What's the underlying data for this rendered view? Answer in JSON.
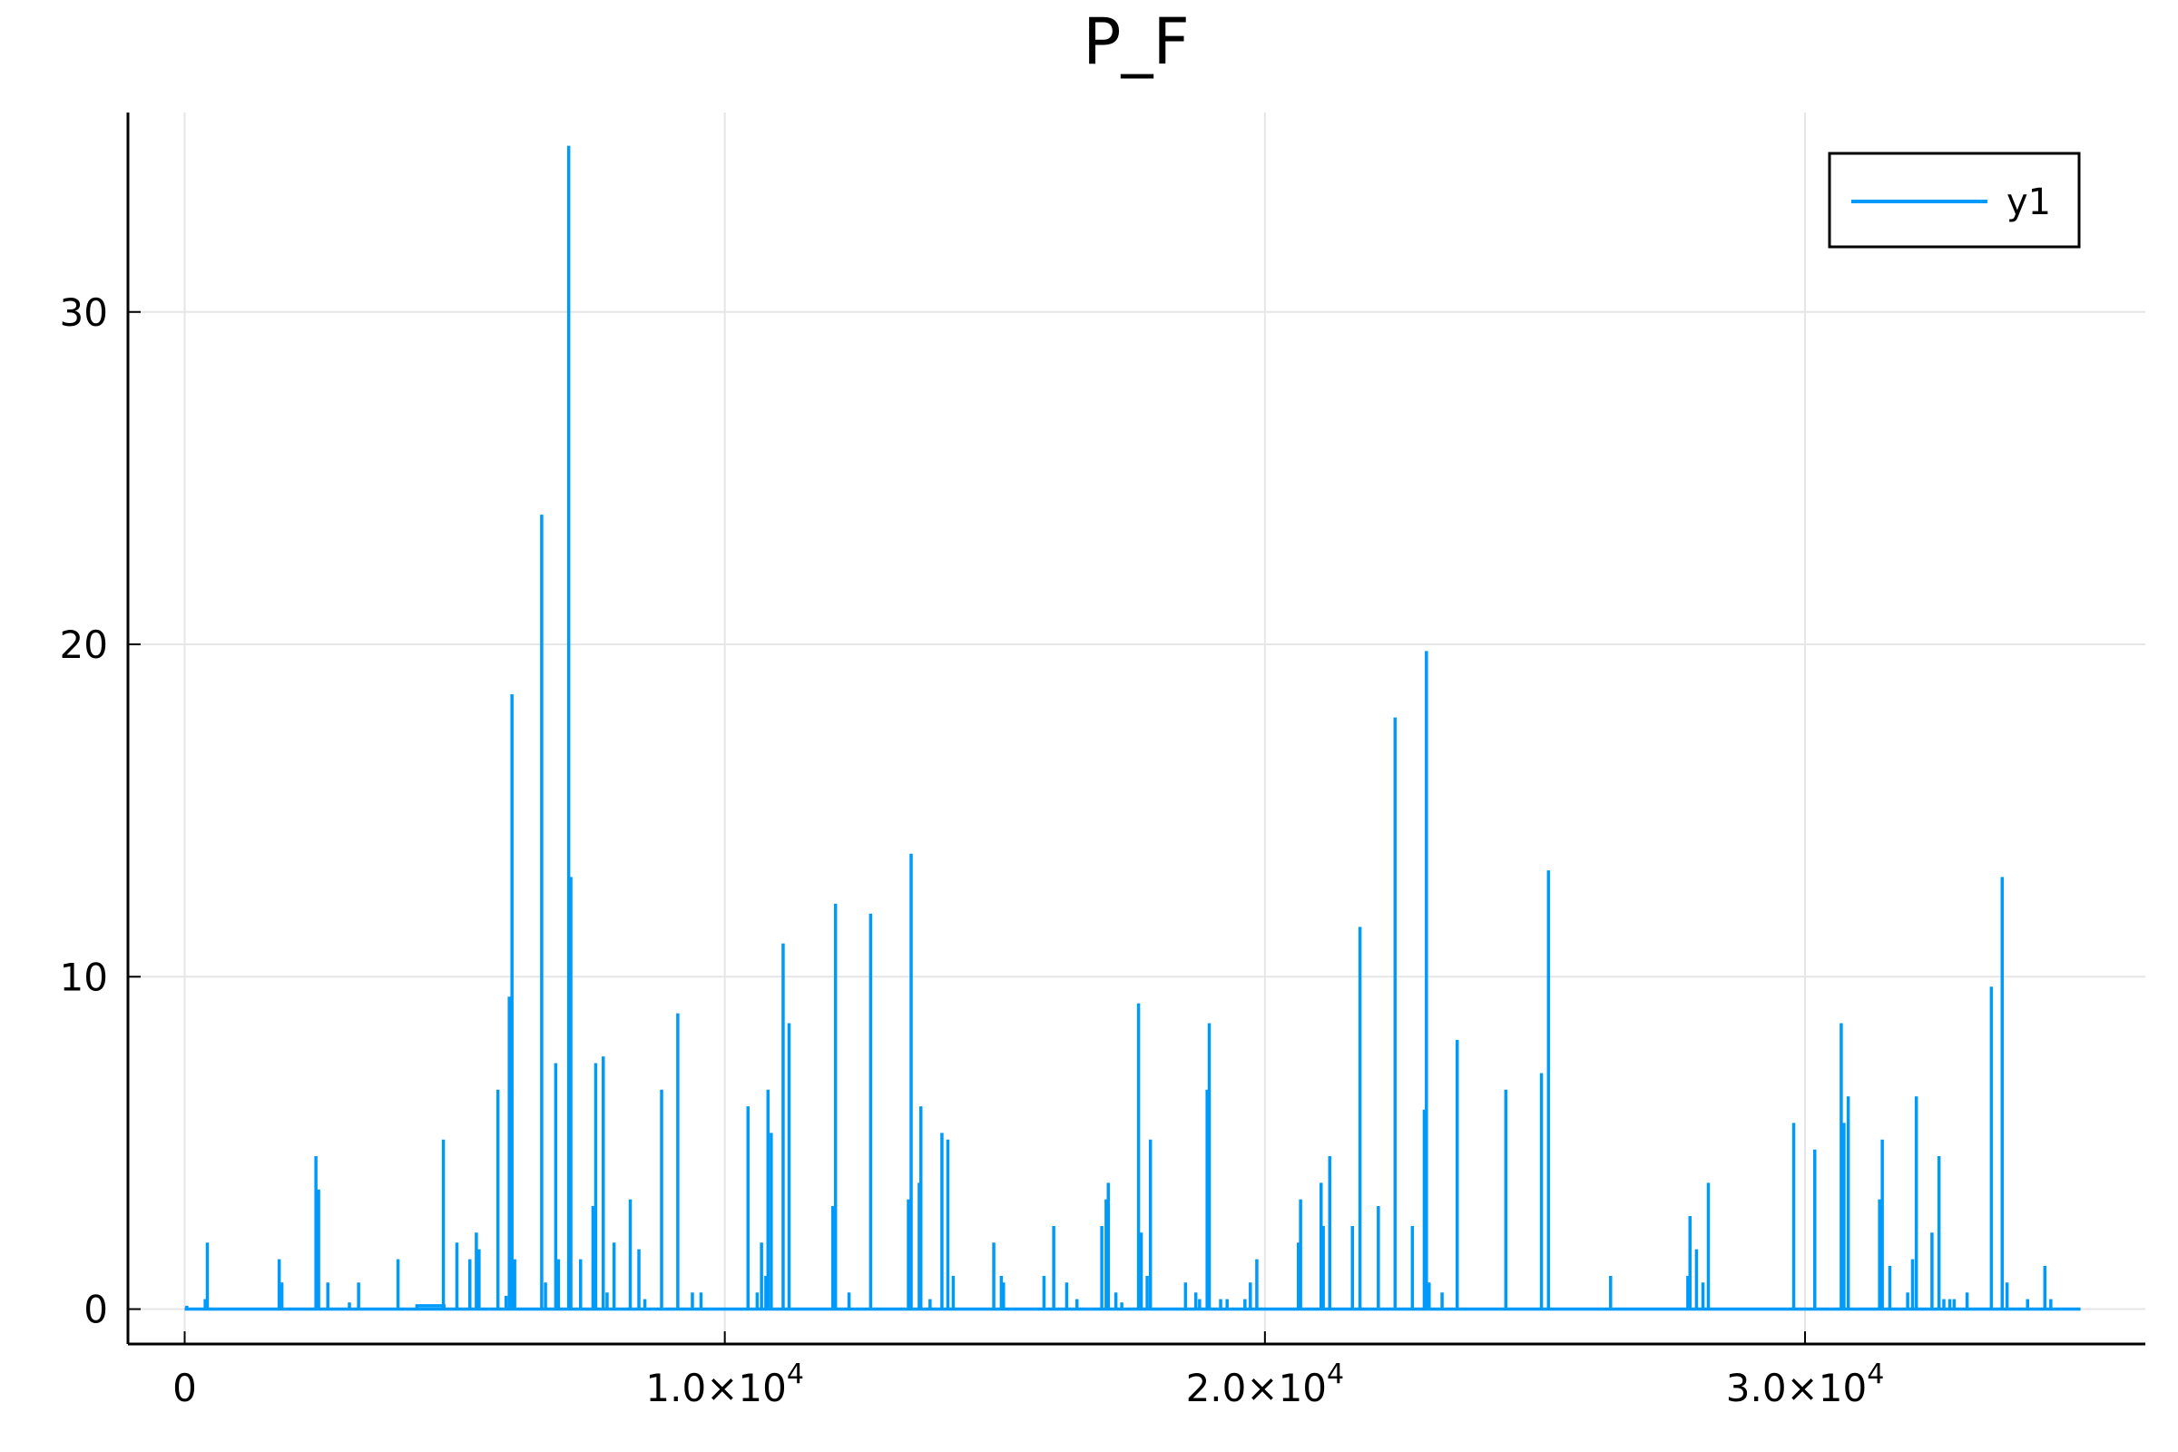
{
  "chart_data": {
    "type": "line",
    "title": "P_F",
    "xlabel": "",
    "ylabel": "",
    "xlim": [
      -1050,
      36300
    ],
    "ylim": [
      -1.05,
      36.0
    ],
    "grid": true,
    "legend_position": "top-right",
    "x_ticks": [
      {
        "value": 0,
        "mantissa": "0",
        "exponent": ""
      },
      {
        "value": 10000,
        "mantissa": "1.0×10",
        "exponent": "4"
      },
      {
        "value": 20000,
        "mantissa": "2.0×10",
        "exponent": "4"
      },
      {
        "value": 30000,
        "mantissa": "3.0×10",
        "exponent": "4"
      }
    ],
    "y_ticks": [
      {
        "value": 0,
        "label": "0"
      },
      {
        "value": 10,
        "label": "10"
      },
      {
        "value": 20,
        "label": "20"
      },
      {
        "value": 30,
        "label": "30"
      }
    ],
    "series": [
      {
        "name": "y1",
        "color": "#009AFA",
        "baseline": 0,
        "x_end": 35100,
        "plateau": {
          "x_start": 4300,
          "x_end": 4800,
          "value": 0.1
        },
        "spikes": [
          [
            40,
            0.1
          ],
          [
            380,
            0.3
          ],
          [
            420,
            2.0
          ],
          [
            1750,
            1.5
          ],
          [
            1800,
            0.8
          ],
          [
            2430,
            4.6
          ],
          [
            2480,
            3.6
          ],
          [
            2650,
            0.8
          ],
          [
            3050,
            0.2
          ],
          [
            3220,
            0.8
          ],
          [
            3950,
            1.5
          ],
          [
            4790,
            5.1
          ],
          [
            5040,
            2.0
          ],
          [
            5280,
            1.5
          ],
          [
            5400,
            2.3
          ],
          [
            5450,
            1.8
          ],
          [
            5800,
            6.6
          ],
          [
            5950,
            0.4
          ],
          [
            6010,
            9.4
          ],
          [
            6060,
            18.5
          ],
          [
            6110,
            1.5
          ],
          [
            6610,
            23.9
          ],
          [
            6680,
            0.8
          ],
          [
            6870,
            7.4
          ],
          [
            6920,
            1.5
          ],
          [
            7110,
            35.0
          ],
          [
            7150,
            13.0
          ],
          [
            7330,
            1.5
          ],
          [
            7560,
            3.1
          ],
          [
            7610,
            7.4
          ],
          [
            7750,
            7.6
          ],
          [
            7820,
            0.5
          ],
          [
            7950,
            2.0
          ],
          [
            8250,
            3.3
          ],
          [
            8410,
            1.8
          ],
          [
            8520,
            0.3
          ],
          [
            8830,
            6.6
          ],
          [
            9130,
            8.9
          ],
          [
            9400,
            0.5
          ],
          [
            9560,
            0.5
          ],
          [
            10430,
            6.1
          ],
          [
            10600,
            0.5
          ],
          [
            10680,
            2.0
          ],
          [
            10760,
            1.0
          ],
          [
            10800,
            6.6
          ],
          [
            10860,
            5.3
          ],
          [
            11080,
            11.0
          ],
          [
            11190,
            8.6
          ],
          [
            12000,
            3.1
          ],
          [
            12050,
            12.2
          ],
          [
            12300,
            0.5
          ],
          [
            12700,
            11.9
          ],
          [
            13400,
            3.3
          ],
          [
            13450,
            13.7
          ],
          [
            13600,
            3.8
          ],
          [
            13630,
            6.1
          ],
          [
            13800,
            0.3
          ],
          [
            14020,
            5.3
          ],
          [
            14130,
            5.1
          ],
          [
            14230,
            1.0
          ],
          [
            14980,
            2.0
          ],
          [
            15120,
            1.0
          ],
          [
            15160,
            0.8
          ],
          [
            15910,
            1.0
          ],
          [
            16090,
            2.5
          ],
          [
            16330,
            0.8
          ],
          [
            16520,
            0.3
          ],
          [
            16980,
            2.5
          ],
          [
            17060,
            3.3
          ],
          [
            17100,
            3.8
          ],
          [
            17240,
            0.5
          ],
          [
            17350,
            0.2
          ],
          [
            17660,
            9.2
          ],
          [
            17710,
            2.3
          ],
          [
            17820,
            1.0
          ],
          [
            17880,
            5.1
          ],
          [
            18530,
            0.8
          ],
          [
            18720,
            0.5
          ],
          [
            18790,
            0.3
          ],
          [
            18930,
            6.6
          ],
          [
            18970,
            8.6
          ],
          [
            19180,
            0.3
          ],
          [
            19300,
            0.3
          ],
          [
            19630,
            0.3
          ],
          [
            19730,
            0.8
          ],
          [
            19850,
            1.5
          ],
          [
            20620,
            2.0
          ],
          [
            20660,
            3.3
          ],
          [
            21040,
            3.8
          ],
          [
            21080,
            2.5
          ],
          [
            21200,
            4.6
          ],
          [
            21620,
            2.5
          ],
          [
            21760,
            11.5
          ],
          [
            22100,
            3.1
          ],
          [
            22410,
            17.8
          ],
          [
            22730,
            2.5
          ],
          [
            22950,
            6.0
          ],
          [
            22990,
            19.8
          ],
          [
            23040,
            0.8
          ],
          [
            23280,
            0.5
          ],
          [
            23560,
            8.1
          ],
          [
            24460,
            6.6
          ],
          [
            25120,
            7.1
          ],
          [
            25250,
            13.2
          ],
          [
            26400,
            1.0
          ],
          [
            27830,
            1.0
          ],
          [
            27870,
            2.8
          ],
          [
            27990,
            1.8
          ],
          [
            28110,
            0.8
          ],
          [
            28210,
            3.8
          ],
          [
            29790,
            5.6
          ],
          [
            30180,
            4.8
          ],
          [
            30670,
            8.6
          ],
          [
            30720,
            5.6
          ],
          [
            30800,
            6.4
          ],
          [
            31380,
            3.3
          ],
          [
            31430,
            5.1
          ],
          [
            31570,
            1.3
          ],
          [
            31900,
            0.5
          ],
          [
            31990,
            1.5
          ],
          [
            32060,
            6.4
          ],
          [
            32350,
            2.3
          ],
          [
            32480,
            4.6
          ],
          [
            32570,
            0.3
          ],
          [
            32680,
            0.3
          ],
          [
            32760,
            0.3
          ],
          [
            33000,
            0.5
          ],
          [
            33450,
            9.7
          ],
          [
            33650,
            13.0
          ],
          [
            33740,
            0.8
          ],
          [
            34120,
            0.3
          ],
          [
            34440,
            1.3
          ],
          [
            34550,
            0.3
          ]
        ]
      }
    ]
  }
}
